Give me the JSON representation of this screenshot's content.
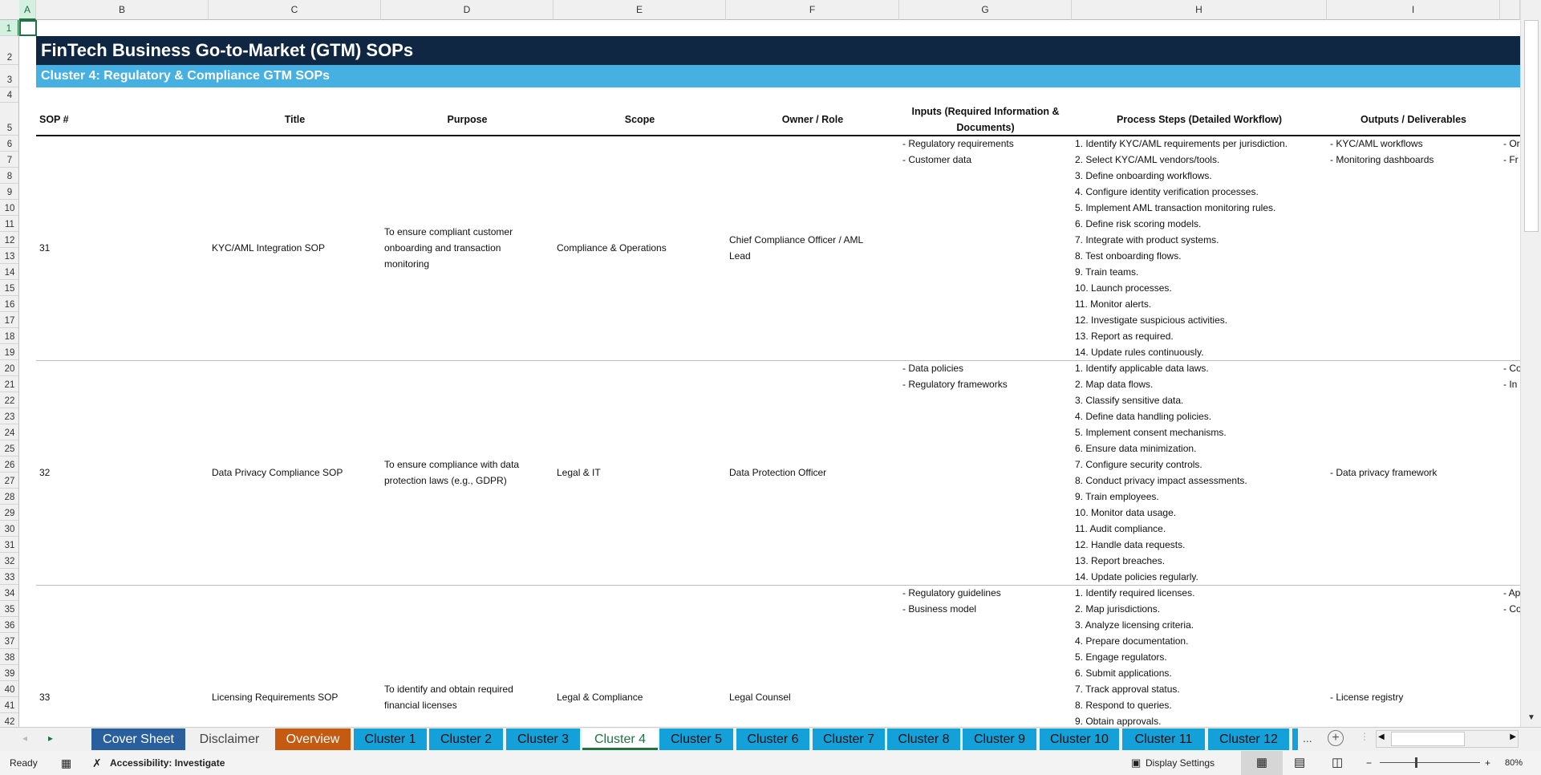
{
  "colors": {
    "title_bg": "#0f2742",
    "subtitle_bg": "#45b0e1",
    "accent": "#217346",
    "tab_cluster": "#14a0d8",
    "tab_cover": "#2a5f9e",
    "tab_overview": "#c55a11"
  },
  "columns": [
    "A",
    "B",
    "C",
    "D",
    "E",
    "F",
    "G",
    "H",
    "I"
  ],
  "row_numbers": [
    1,
    2,
    3,
    4,
    5,
    6,
    7,
    8,
    9,
    10,
    11,
    12,
    13,
    14,
    15,
    16,
    17,
    18,
    19,
    20,
    21,
    22,
    23,
    24,
    25,
    26,
    27,
    28,
    29,
    30,
    31,
    32,
    33,
    34,
    35,
    36,
    37,
    38,
    39,
    40,
    41,
    42
  ],
  "sheet": {
    "title": "FinTech Business Go-to-Market (GTM) SOPs",
    "subtitle": "Cluster 4: Regulatory & Compliance GTM SOPs",
    "headers": [
      "SOP #",
      "Title",
      "Purpose",
      "Scope",
      "Owner / Role",
      "Inputs (Required Information & Documents)",
      "Process Steps (Detailed Workflow)",
      "Outputs / Deliverables"
    ],
    "records": [
      {
        "sop": "31",
        "title": "KYC/AML Integration SOP",
        "purpose": "To ensure compliant customer onboarding and transaction monitoring",
        "scope": "Compliance & Operations",
        "owner": "Chief Compliance Officer / AML Lead",
        "inputs": [
          "- Regulatory requirements",
          "- Customer data"
        ],
        "steps": [
          "1. Identify KYC/AML requirements per jurisdiction.",
          "2. Select KYC/AML vendors/tools.",
          "3. Define onboarding workflows.",
          "4. Configure identity verification processes.",
          "5. Implement AML transaction monitoring rules.",
          "6. Define risk scoring models.",
          "7. Integrate with product systems.",
          "8. Test onboarding flows.",
          "9. Train teams.",
          "10. Launch processes.",
          "11. Monitor alerts.",
          "12. Investigate suspicious activities.",
          "13. Report as required.",
          "14. Update rules continuously."
        ],
        "outputs": [
          "- KYC/AML workflows",
          "- Monitoring dashboards"
        ],
        "outputs_align": "top",
        "next_col_partial": [
          "- Or",
          "- Fr"
        ]
      },
      {
        "sop": "32",
        "title": "Data Privacy Compliance SOP",
        "purpose": "To ensure compliance with data protection laws (e.g., GDPR)",
        "scope": "Legal & IT",
        "owner": "Data Protection Officer",
        "inputs": [
          "- Data policies",
          "- Regulatory frameworks"
        ],
        "steps": [
          "1. Identify applicable data laws.",
          "2. Map data flows.",
          "3. Classify sensitive data.",
          "4. Define data handling policies.",
          "5. Implement consent mechanisms.",
          "6. Ensure data minimization.",
          "7. Configure security controls.",
          "8. Conduct privacy impact assessments.",
          "9. Train employees.",
          "10. Monitor data usage.",
          "11. Audit compliance.",
          "12. Handle data requests.",
          "13. Report breaches.",
          "14. Update policies regularly."
        ],
        "outputs": [
          "- Data privacy framework"
        ],
        "outputs_align": "mid",
        "next_col_partial": [
          "- Co",
          "- In"
        ]
      },
      {
        "sop": "33",
        "title": "Licensing Requirements SOP",
        "purpose": "To identify and obtain required financial licenses",
        "scope": "Legal & Compliance",
        "owner": "Legal Counsel",
        "inputs": [
          "- Regulatory guidelines",
          "- Business model"
        ],
        "steps": [
          "1. Identify required licenses.",
          "2. Map jurisdictions.",
          "3. Analyze licensing criteria.",
          "4. Prepare documentation.",
          "5. Engage regulators.",
          "6. Submit applications.",
          "7. Track approval status.",
          "8. Respond to queries.",
          "9. Obtain approvals."
        ],
        "outputs": [
          "- License registry"
        ],
        "outputs_align": "mid",
        "next_col_partial": [
          "- Ap",
          "- Co"
        ]
      }
    ]
  },
  "tabs": [
    {
      "label": "Cover Sheet",
      "color": "#2a5f9e",
      "text": "#ffffff"
    },
    {
      "label": "Disclaimer",
      "color": "#f0f0f0",
      "text": "#444444"
    },
    {
      "label": "Overview",
      "color": "#c55a11",
      "text": "#ffffff"
    },
    {
      "label": "Cluster 1",
      "color": "#14a0d8",
      "text": "#111111"
    },
    {
      "label": "Cluster 2",
      "color": "#14a0d8",
      "text": "#111111"
    },
    {
      "label": "Cluster 3",
      "color": "#14a0d8",
      "text": "#111111"
    },
    {
      "label": "Cluster 4",
      "color": "#ffffff",
      "text": "#217346",
      "active": true
    },
    {
      "label": "Cluster 5",
      "color": "#14a0d8",
      "text": "#111111"
    },
    {
      "label": "Cluster 6",
      "color": "#14a0d8",
      "text": "#111111"
    },
    {
      "label": "Cluster 7",
      "color": "#14a0d8",
      "text": "#111111"
    },
    {
      "label": "Cluster 8",
      "color": "#14a0d8",
      "text": "#111111"
    },
    {
      "label": "Cluster 9",
      "color": "#14a0d8",
      "text": "#111111"
    },
    {
      "label": "Cluster 10",
      "color": "#14a0d8",
      "text": "#111111"
    },
    {
      "label": "Cluster 11",
      "color": "#14a0d8",
      "text": "#111111"
    },
    {
      "label": "Cluster 12",
      "color": "#14a0d8",
      "text": "#111111"
    }
  ],
  "tabbar": {
    "more": "...",
    "add": "+"
  },
  "status": {
    "ready": "Ready",
    "accessibility": "Accessibility: Investigate",
    "display_settings": "Display Settings",
    "zoom": "80%",
    "zoom_level_percent": 80
  }
}
